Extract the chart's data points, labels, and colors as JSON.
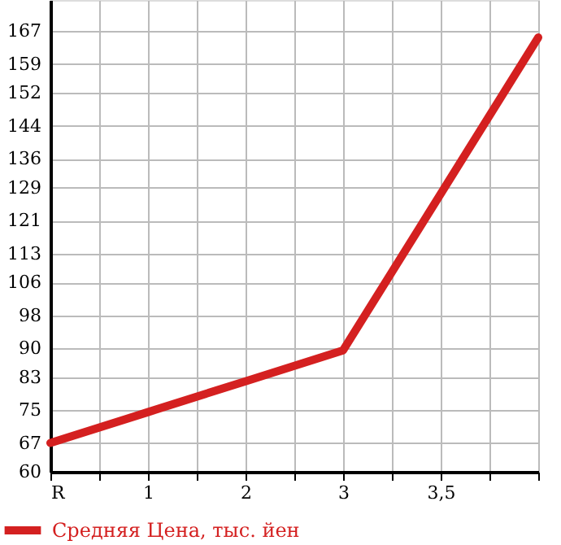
{
  "chart_data": {
    "type": "line",
    "categories": [
      "R",
      "1",
      "2",
      "3",
      "3,5",
      null
    ],
    "series": [
      {
        "name": "Средняя Цена, тыс. йен",
        "color": "#d42020",
        "values": [
          67,
          74.5,
          82,
          89.5,
          127.5,
          165.5
        ]
      }
    ],
    "ylim": [
      60,
      174.6
    ],
    "yticks": [
      60,
      67,
      75,
      83,
      90,
      98,
      106,
      113,
      121,
      129,
      136,
      144,
      152,
      159,
      167
    ],
    "grid": true,
    "legend": "bottom left",
    "line_style": "solid",
    "marker": "none"
  }
}
